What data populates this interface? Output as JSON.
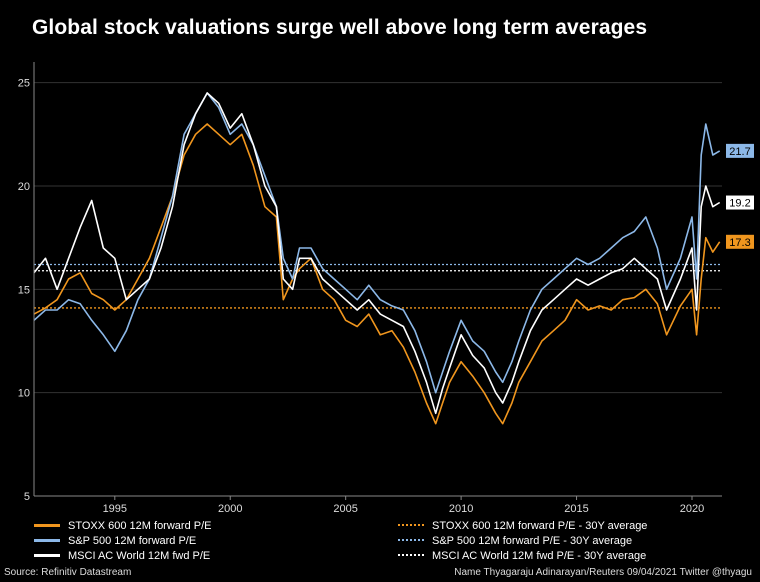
{
  "title": "Global stock valuations surge well above long term averages",
  "footer": {
    "source": "Source: Refinitiv Datastream",
    "credit": "Name Thyagaraju Adinarayan/Reuters 09/04/2021 Twitter @thyagu"
  },
  "colors": {
    "stoxx": "#f0961e",
    "sp500": "#8cb8e8",
    "msci": "#ffffff",
    "grid": "#333333",
    "background": "#000000"
  },
  "legend": {
    "items": [
      {
        "label": "STOXX 600 12M forward P/E",
        "series": "stoxx",
        "style": "solid"
      },
      {
        "label": "S&P 500 12M forward P/E",
        "series": "sp500",
        "style": "solid"
      },
      {
        "label": "MSCI AC World 12M fwd P/E",
        "series": "msci",
        "style": "solid"
      },
      {
        "label": "STOXX 600 12M forward P/E - 30Y average",
        "series": "stoxx",
        "style": "dotted"
      },
      {
        "label": "S&P 500 12M forward P/E - 30Y average",
        "series": "sp500",
        "style": "dotted"
      },
      {
        "label": "MSCI AC World 12M fwd P/E - 30Y average",
        "series": "msci",
        "style": "dotted"
      }
    ]
  },
  "chart_data": {
    "type": "line",
    "title": "Global stock valuations surge well above long term averages",
    "xlabel": "",
    "ylabel": "",
    "xlim": [
      1991.5,
      2021.3
    ],
    "ylim": [
      5,
      26
    ],
    "x_ticks": [
      1995,
      2000,
      2005,
      2010,
      2015,
      2020
    ],
    "y_ticks": [
      5,
      10,
      15,
      20,
      25
    ],
    "grid": true,
    "legend_position": "bottom",
    "series": [
      {
        "name": "STOXX 600 12M forward P/E",
        "key": "stoxx",
        "x": [
          1991.5,
          1992.0,
          1992.5,
          1993.0,
          1993.5,
          1994.0,
          1994.5,
          1995.0,
          1995.5,
          1996.0,
          1996.5,
          1997.0,
          1997.5,
          1998.0,
          1998.5,
          1999.0,
          1999.5,
          2000.0,
          2000.5,
          2001.0,
          2001.5,
          2002.0,
          2002.3,
          2002.7,
          2003.0,
          2003.5,
          2004.0,
          2004.5,
          2005.0,
          2005.5,
          2006.0,
          2006.5,
          2007.0,
          2007.5,
          2008.0,
          2008.5,
          2008.9,
          2009.2,
          2009.5,
          2010.0,
          2010.5,
          2011.0,
          2011.5,
          2011.8,
          2012.2,
          2012.5,
          2013.0,
          2013.5,
          2014.0,
          2014.5,
          2015.0,
          2015.5,
          2016.0,
          2016.5,
          2017.0,
          2017.5,
          2018.0,
          2018.5,
          2018.9,
          2019.5,
          2020.0,
          2020.2,
          2020.4,
          2020.6,
          2020.9,
          2021.2
        ],
        "values": [
          13.8,
          14.1,
          14.5,
          15.5,
          15.8,
          14.8,
          14.5,
          14.0,
          14.5,
          15.5,
          16.5,
          18.0,
          19.5,
          21.5,
          22.5,
          23.0,
          22.5,
          22.0,
          22.5,
          21.0,
          19.0,
          18.5,
          14.5,
          15.5,
          16.0,
          16.5,
          15.0,
          14.5,
          13.5,
          13.2,
          13.8,
          12.8,
          13.0,
          12.2,
          11.0,
          9.5,
          8.5,
          9.5,
          10.5,
          11.5,
          10.8,
          10.0,
          9.0,
          8.5,
          9.5,
          10.5,
          11.5,
          12.5,
          13.0,
          13.5,
          14.5,
          14.0,
          14.2,
          14.0,
          14.5,
          14.6,
          15.0,
          14.3,
          12.8,
          14.2,
          15.0,
          12.8,
          15.5,
          17.5,
          16.8,
          17.3
        ]
      },
      {
        "name": "S&P 500 12M forward P/E",
        "key": "sp500",
        "x": [
          1991.5,
          1992.0,
          1992.5,
          1993.0,
          1993.5,
          1994.0,
          1994.5,
          1995.0,
          1995.5,
          1996.0,
          1996.5,
          1997.0,
          1997.5,
          1998.0,
          1998.5,
          1999.0,
          1999.5,
          2000.0,
          2000.5,
          2001.0,
          2001.5,
          2002.0,
          2002.3,
          2002.7,
          2003.0,
          2003.5,
          2004.0,
          2004.5,
          2005.0,
          2005.5,
          2006.0,
          2006.5,
          2007.0,
          2007.5,
          2008.0,
          2008.5,
          2008.9,
          2009.2,
          2009.5,
          2010.0,
          2010.5,
          2011.0,
          2011.5,
          2011.8,
          2012.2,
          2012.5,
          2013.0,
          2013.5,
          2014.0,
          2014.5,
          2015.0,
          2015.5,
          2016.0,
          2016.5,
          2017.0,
          2017.5,
          2018.0,
          2018.5,
          2018.9,
          2019.5,
          2020.0,
          2020.2,
          2020.4,
          2020.6,
          2020.9,
          2021.2
        ],
        "values": [
          13.5,
          14.0,
          14.0,
          14.5,
          14.3,
          13.5,
          12.8,
          12.0,
          13.0,
          14.5,
          15.5,
          17.5,
          19.5,
          22.5,
          23.5,
          24.5,
          23.8,
          22.5,
          23.0,
          22.0,
          20.5,
          19.0,
          16.5,
          15.5,
          17.0,
          17.0,
          16.0,
          15.5,
          15.0,
          14.5,
          15.2,
          14.5,
          14.2,
          14.0,
          13.0,
          11.5,
          10.0,
          11.0,
          12.0,
          13.5,
          12.5,
          12.0,
          11.0,
          10.5,
          11.5,
          12.5,
          14.0,
          15.0,
          15.5,
          16.0,
          16.5,
          16.2,
          16.5,
          17.0,
          17.5,
          17.8,
          18.5,
          17.0,
          15.0,
          16.5,
          18.5,
          15.5,
          21.5,
          23.0,
          21.5,
          21.7
        ]
      },
      {
        "name": "MSCI AC World 12M fwd P/E",
        "key": "msci",
        "x": [
          1991.5,
          1992.0,
          1992.5,
          1993.0,
          1993.5,
          1994.0,
          1994.5,
          1995.0,
          1995.5,
          1996.0,
          1996.5,
          1997.0,
          1997.5,
          1998.0,
          1998.5,
          1999.0,
          1999.5,
          2000.0,
          2000.5,
          2001.0,
          2001.5,
          2002.0,
          2002.3,
          2002.7,
          2003.0,
          2003.5,
          2004.0,
          2004.5,
          2005.0,
          2005.5,
          2006.0,
          2006.5,
          2007.0,
          2007.5,
          2008.0,
          2008.5,
          2008.9,
          2009.2,
          2009.5,
          2010.0,
          2010.5,
          2011.0,
          2011.5,
          2011.8,
          2012.2,
          2012.5,
          2013.0,
          2013.5,
          2014.0,
          2014.5,
          2015.0,
          2015.5,
          2016.0,
          2016.5,
          2017.0,
          2017.5,
          2018.0,
          2018.5,
          2018.9,
          2019.5,
          2020.0,
          2020.2,
          2020.4,
          2020.6,
          2020.9,
          2021.2
        ],
        "values": [
          15.8,
          16.5,
          15.0,
          16.5,
          18.0,
          19.3,
          17.0,
          16.5,
          14.5,
          15.0,
          15.5,
          17.0,
          19.0,
          22.0,
          23.5,
          24.5,
          24.0,
          22.8,
          23.5,
          22.0,
          20.0,
          19.0,
          15.5,
          15.0,
          16.5,
          16.5,
          15.5,
          15.0,
          14.5,
          14.0,
          14.5,
          13.8,
          13.5,
          13.2,
          12.0,
          10.5,
          9.0,
          10.2,
          11.2,
          12.8,
          11.8,
          11.2,
          10.0,
          9.5,
          10.5,
          11.5,
          13.0,
          14.0,
          14.5,
          15.0,
          15.5,
          15.2,
          15.5,
          15.8,
          16.0,
          16.5,
          16.0,
          15.5,
          14.0,
          15.5,
          17.0,
          14.0,
          19.0,
          20.0,
          19.0,
          19.2
        ]
      }
    ],
    "averages": [
      {
        "name": "STOXX 600 12M forward P/E - 30Y average",
        "key": "stoxx",
        "value": 14.1
      },
      {
        "name": "S&P 500 12M forward P/E - 30Y average",
        "key": "sp500",
        "value": 16.2
      },
      {
        "name": "MSCI AC World 12M fwd P/E - 30Y average",
        "key": "msci",
        "value": 15.9
      }
    ],
    "end_labels": [
      {
        "key": "sp500",
        "text": "21.7",
        "value": 21.7
      },
      {
        "key": "msci",
        "text": "19.2",
        "value": 19.2
      },
      {
        "key": "stoxx",
        "text": "17.3",
        "value": 17.3
      }
    ]
  }
}
